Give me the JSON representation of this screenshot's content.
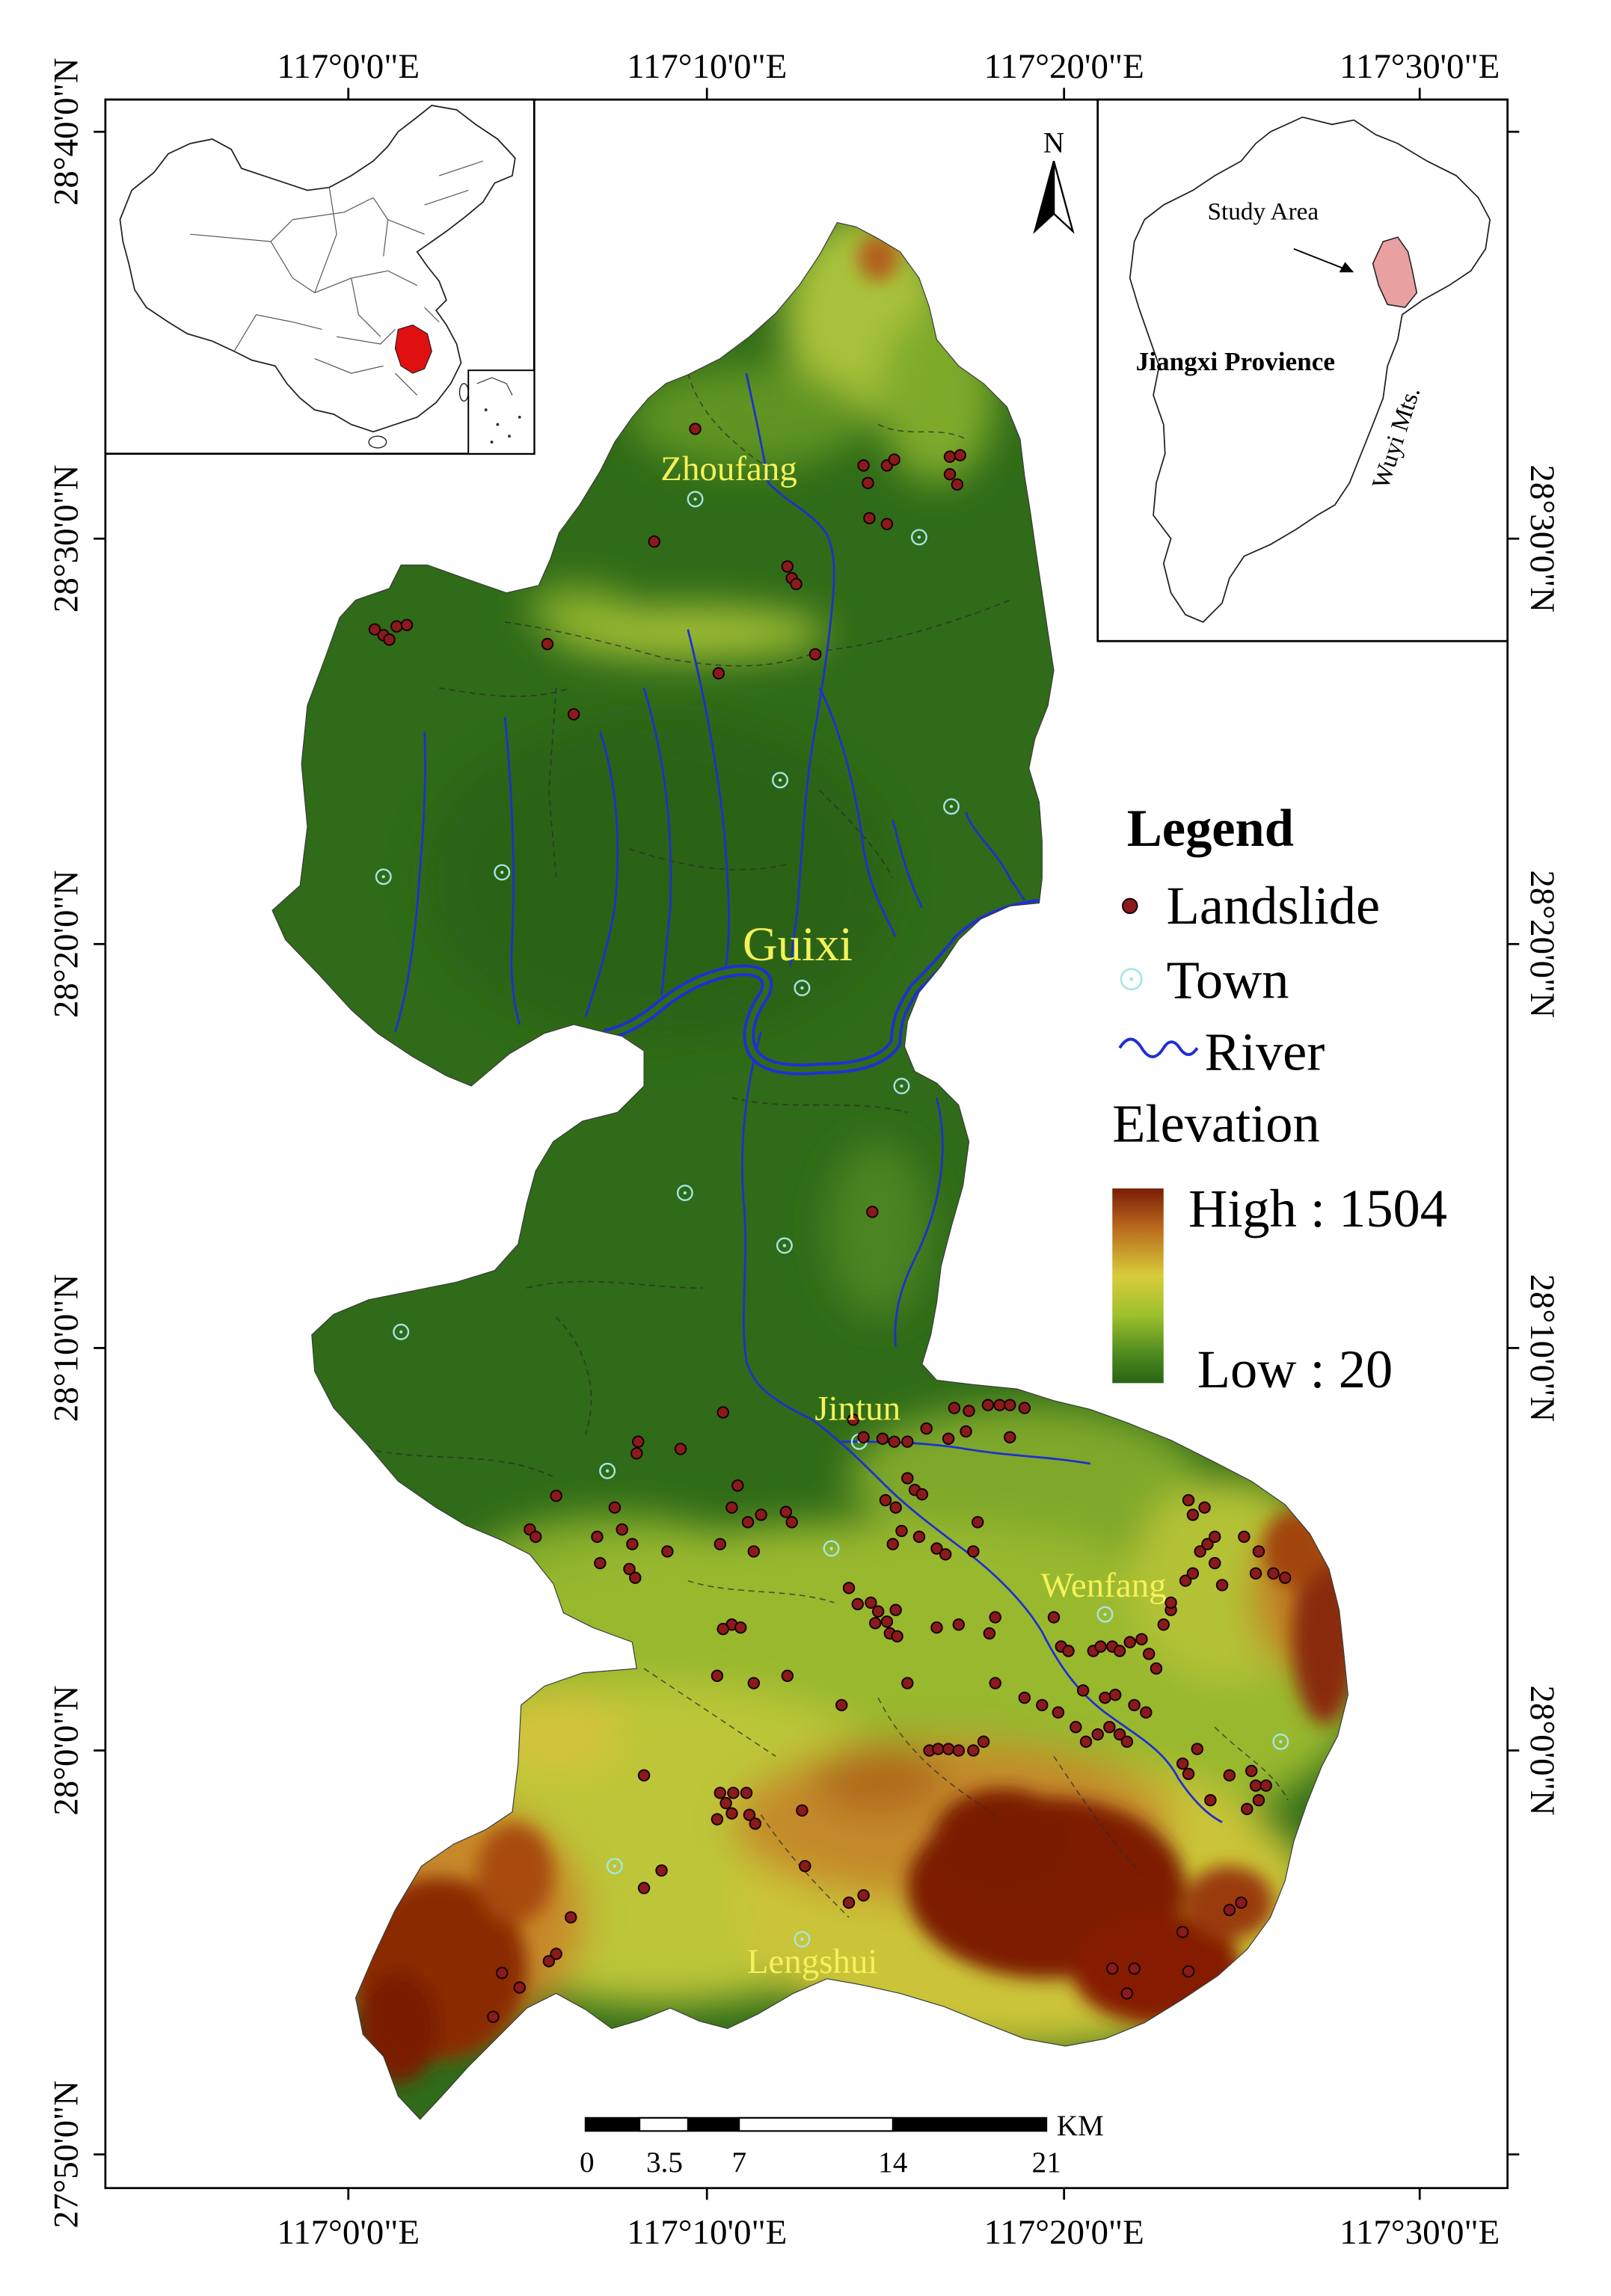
{
  "graticule": {
    "top": [
      "117°0'0\"E",
      "117°10'0\"E",
      "117°20'0\"E",
      "117°30'0\"E"
    ],
    "bottom": [
      "117°0'0\"E",
      "117°10'0\"E",
      "117°20'0\"E",
      "117°30'0\"E"
    ],
    "left": [
      "28°40'0\"N",
      "28°30'0\"N",
      "28°20'0\"N",
      "28°10'0\"N",
      "28°0'0\"N",
      "27°50'0\"N"
    ],
    "right": [
      "28°30'0\"N",
      "28°20'0\"N",
      "28°10'0\"N",
      "28°0'0\"N"
    ]
  },
  "north_arrow": {
    "label": "N",
    "icon": "north-arrow-icon"
  },
  "towns": {
    "zhoufang": "Zhoufang",
    "guixi": "Guixi",
    "jintun": "Jintun",
    "wenfang": "Wenfang",
    "lengshui": "Lengshui"
  },
  "jiangxi_inset": {
    "study_area": "Study Area",
    "province": "Jiangxi Provience",
    "mountains": "Wuyi Mts."
  },
  "legend": {
    "title": "Legend",
    "landslide": "Landslide",
    "town": "Town",
    "river": "River",
    "elevation": "Elevation",
    "high": "High : 1504",
    "low": "Low : 20"
  },
  "scale_bar": {
    "ticks": [
      "0",
      "3.5",
      "7",
      "14",
      "21"
    ],
    "unit": "KM"
  },
  "colors": {
    "landslide": "#8b1a1a",
    "town": "#a8e6e6",
    "river": "#1f2fd0",
    "town_label": "#f4f25a",
    "study_area_inset": "#e8a0a0",
    "jiangxi_in_china": "#e01010",
    "elevation_high": "#7a1c05",
    "elevation_low": "#2a6315"
  }
}
